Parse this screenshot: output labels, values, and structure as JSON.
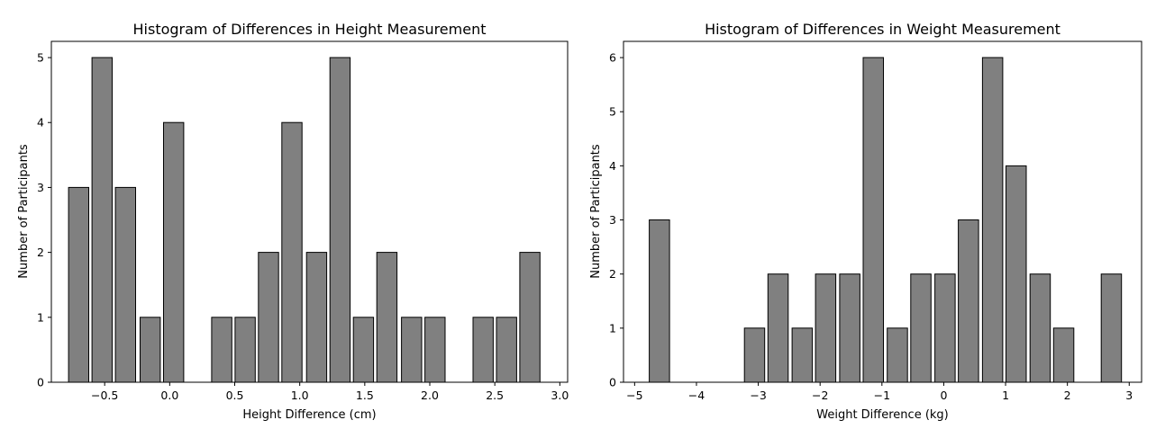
{
  "colors": {
    "bar_fill": "#808080",
    "bar_edge": "#000000",
    "background": "#ffffff"
  },
  "chart_data": [
    {
      "type": "bar",
      "title": "Histogram of Differences in Height Measurement",
      "xlabel": "Height Difference (cm)",
      "ylabel": "Number of Participants",
      "xlim": [
        -0.91,
        3.06
      ],
      "ylim": [
        0,
        5.25
      ],
      "bin_width": 0.1826,
      "x_ticks": [
        -0.5,
        0.0,
        0.5,
        1.0,
        1.5,
        2.0,
        2.5,
        3.0
      ],
      "x_tick_labels": [
        "−0.5",
        "0.0",
        "0.5",
        "1.0",
        "1.5",
        "2.0",
        "2.5",
        "3.0"
      ],
      "y_ticks": [
        0,
        1,
        2,
        3,
        4,
        5
      ],
      "y_tick_labels": [
        "0",
        "1",
        "2",
        "3",
        "4",
        "5"
      ],
      "grid": false,
      "bins": [
        {
          "x": -0.7,
          "count": 3
        },
        {
          "x": -0.52,
          "count": 5
        },
        {
          "x": -0.34,
          "count": 3
        },
        {
          "x": -0.15,
          "count": 1
        },
        {
          "x": 0.03,
          "count": 4
        },
        {
          "x": 0.21,
          "count": 0
        },
        {
          "x": 0.4,
          "count": 1
        },
        {
          "x": 0.58,
          "count": 1
        },
        {
          "x": 0.76,
          "count": 2
        },
        {
          "x": 0.94,
          "count": 4
        },
        {
          "x": 1.13,
          "count": 2
        },
        {
          "x": 1.31,
          "count": 5
        },
        {
          "x": 1.49,
          "count": 1
        },
        {
          "x": 1.67,
          "count": 2
        },
        {
          "x": 1.86,
          "count": 1
        },
        {
          "x": 2.04,
          "count": 1
        },
        {
          "x": 2.22,
          "count": 0
        },
        {
          "x": 2.41,
          "count": 1
        },
        {
          "x": 2.59,
          "count": 1
        },
        {
          "x": 2.77,
          "count": 2
        }
      ]
    },
    {
      "type": "bar",
      "title": "Histogram of Differences in Weight Measurement",
      "xlabel": "Weight Difference (kg)",
      "ylabel": "Number of Participants",
      "xlim": [
        -5.18,
        3.2
      ],
      "ylim": [
        0,
        6.3
      ],
      "bin_width": 0.385,
      "x_ticks": [
        -5,
        -4,
        -3,
        -2,
        -1,
        0,
        1,
        2,
        3
      ],
      "x_tick_labels": [
        "−5",
        "−4",
        "−3",
        "−2",
        "−1",
        "0",
        "1",
        "2",
        "3"
      ],
      "y_ticks": [
        0,
        1,
        2,
        3,
        4,
        5,
        6
      ],
      "y_tick_labels": [
        "0",
        "1",
        "2",
        "3",
        "4",
        "5",
        "6"
      ],
      "grid": false,
      "bins": [
        {
          "x": -4.6,
          "count": 3
        },
        {
          "x": -4.22,
          "count": 0
        },
        {
          "x": -3.83,
          "count": 0
        },
        {
          "x": -3.45,
          "count": 0
        },
        {
          "x": -3.06,
          "count": 1
        },
        {
          "x": -2.68,
          "count": 2
        },
        {
          "x": -2.29,
          "count": 1
        },
        {
          "x": -1.91,
          "count": 2
        },
        {
          "x": -1.52,
          "count": 2
        },
        {
          "x": -1.14,
          "count": 6
        },
        {
          "x": -0.75,
          "count": 1
        },
        {
          "x": -0.37,
          "count": 2
        },
        {
          "x": 0.02,
          "count": 2
        },
        {
          "x": 0.4,
          "count": 3
        },
        {
          "x": 0.79,
          "count": 6
        },
        {
          "x": 1.17,
          "count": 4
        },
        {
          "x": 1.56,
          "count": 2
        },
        {
          "x": 1.94,
          "count": 1
        },
        {
          "x": 2.33,
          "count": 0
        },
        {
          "x": 2.71,
          "count": 2
        }
      ]
    }
  ]
}
